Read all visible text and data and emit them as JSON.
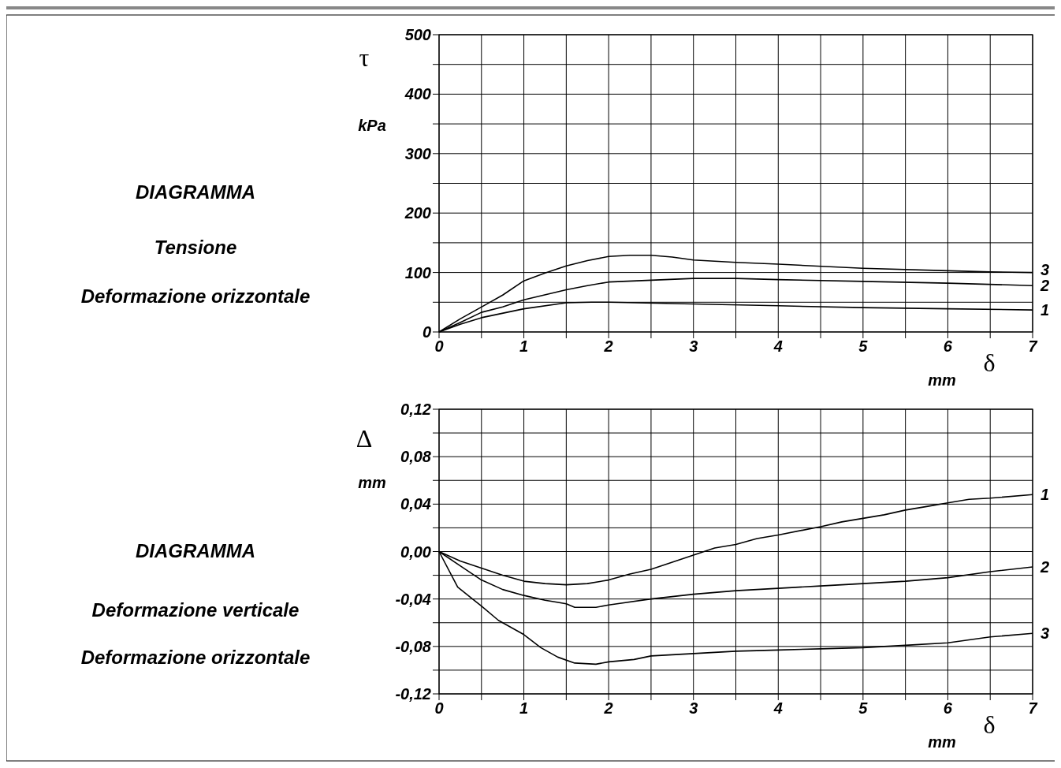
{
  "chart_data": [
    {
      "type": "line",
      "ylabel": "τ",
      "xlabel": "δ",
      "annotations": [
        "kPa",
        "mm",
        "DIAGRAMMA",
        "Tensione",
        "Deformazione orizzontale"
      ],
      "xlim": [
        0,
        7
      ],
      "ylim": [
        0,
        500
      ],
      "xticks": [
        0,
        {
          "value": 0.5,
          "label": null
        },
        1,
        {
          "value": 1.5,
          "label": null
        },
        2,
        {
          "value": 2.5,
          "label": null
        },
        3,
        {
          "value": 3.5,
          "label": null
        },
        4,
        {
          "value": 4.5,
          "label": null
        },
        5,
        {
          "value": 5.5,
          "label": null
        },
        6,
        {
          "value": 6.5,
          "label": null
        },
        7
      ],
      "yticks": [
        0,
        {
          "value": 50,
          "label": null
        },
        100,
        {
          "value": 150,
          "label": null
        },
        200,
        {
          "value": 250,
          "label": null
        },
        300,
        {
          "value": 350,
          "label": null
        },
        400,
        {
          "value": 450,
          "label": null
        },
        500
      ],
      "grid": true,
      "line_style": "solid",
      "series": [
        {
          "name": "1",
          "color": "#000000",
          "x": [
            0,
            0.25,
            0.5,
            1,
            1.5,
            1.8,
            2,
            3,
            4,
            5,
            6,
            7
          ],
          "values": [
            0,
            13,
            24,
            39,
            49,
            50,
            50,
            47,
            44,
            41,
            39,
            37
          ]
        },
        {
          "name": "2",
          "color": "#000000",
          "x": [
            0,
            0.25,
            0.5,
            0.75,
            1,
            1.5,
            1.75,
            2,
            2.5,
            3,
            3.5,
            4,
            5,
            6,
            7
          ],
          "values": [
            0,
            16,
            33,
            42,
            54,
            71,
            78,
            84,
            87,
            90,
            90,
            88,
            85,
            82,
            78
          ]
        },
        {
          "name": "3",
          "color": "#000000",
          "x": [
            0,
            0.25,
            0.5,
            0.75,
            1,
            1.25,
            1.5,
            1.75,
            2,
            2.25,
            2.5,
            2.75,
            3,
            3.5,
            4,
            5,
            6,
            6.5,
            7
          ],
          "values": [
            0,
            22,
            42,
            62,
            86,
            99,
            111,
            120,
            127,
            129,
            129,
            126,
            121,
            117,
            114,
            107,
            103,
            101,
            100
          ]
        }
      ]
    },
    {
      "type": "line",
      "ylabel": "Δ",
      "xlabel": "δ",
      "annotations": [
        "mm",
        "mm",
        "DIAGRAMMA",
        "Deformazione verticale",
        "Deformazione orizzontale"
      ],
      "xlim": [
        0,
        7
      ],
      "ylim": [
        -0.12,
        0.12
      ],
      "xticks": [
        0,
        {
          "value": 0.5,
          "label": null
        },
        1,
        {
          "value": 1.5,
          "label": null
        },
        2,
        {
          "value": 2.5,
          "label": null
        },
        3,
        {
          "value": 3.5,
          "label": null
        },
        4,
        {
          "value": 4.5,
          "label": null
        },
        5,
        {
          "value": 5.5,
          "label": null
        },
        6,
        {
          "value": 6.5,
          "label": null
        },
        7
      ],
      "yticks": [
        {
          "value": -0.12,
          "label": "-0,12"
        },
        {
          "value": -0.1,
          "label": null
        },
        {
          "value": -0.08,
          "label": "-0,08"
        },
        {
          "value": -0.06,
          "label": null
        },
        {
          "value": -0.04,
          "label": "-0,04"
        },
        {
          "value": -0.02,
          "label": null
        },
        {
          "value": 0,
          "label": "0,00"
        },
        {
          "value": 0.02,
          "label": null
        },
        {
          "value": 0.04,
          "label": "0,04"
        },
        {
          "value": 0.06,
          "label": null
        },
        {
          "value": 0.08,
          "label": "0,08"
        },
        {
          "value": 0.1,
          "label": null
        },
        {
          "value": 0.12,
          "label": "0,12"
        }
      ],
      "grid": true,
      "line_style": "solid",
      "series": [
        {
          "name": "1",
          "color": "#000000",
          "x": [
            0,
            0.25,
            0.5,
            0.75,
            1,
            1.25,
            1.5,
            1.75,
            2,
            2.25,
            2.5,
            2.75,
            3,
            3.25,
            3.5,
            3.75,
            4,
            4.5,
            4.75,
            5,
            5.25,
            5.5,
            5.75,
            6,
            6.25,
            6.5,
            7
          ],
          "values": [
            0,
            -0.008,
            -0.014,
            -0.02,
            -0.025,
            -0.027,
            -0.028,
            -0.027,
            -0.024,
            -0.019,
            -0.015,
            -0.009,
            -0.003,
            0.003,
            0.006,
            0.011,
            0.014,
            0.021,
            0.025,
            0.028,
            0.031,
            0.035,
            0.038,
            0.041,
            0.044,
            0.045,
            0.048
          ]
        },
        {
          "name": "2",
          "color": "#000000",
          "x": [
            0,
            0.25,
            0.5,
            0.75,
            1,
            1.25,
            1.5,
            1.6,
            1.85,
            2,
            2.5,
            3,
            3.5,
            4,
            4.5,
            5,
            5.5,
            6,
            6.5,
            7
          ],
          "values": [
            0,
            -0.012,
            -0.024,
            -0.032,
            -0.037,
            -0.041,
            -0.044,
            -0.047,
            -0.047,
            -0.045,
            -0.04,
            -0.036,
            -0.033,
            -0.031,
            -0.029,
            -0.027,
            -0.025,
            -0.022,
            -0.017,
            -0.013
          ]
        },
        {
          "name": "3",
          "color": "#000000",
          "x": [
            0,
            0.22,
            0.5,
            0.7,
            1,
            1.2,
            1.4,
            1.6,
            1.85,
            2,
            2.3,
            2.5,
            3,
            3.5,
            4,
            4.5,
            5,
            5.5,
            6,
            6.5,
            7
          ],
          "values": [
            0,
            -0.03,
            -0.046,
            -0.058,
            -0.07,
            -0.081,
            -0.089,
            -0.094,
            -0.095,
            -0.093,
            -0.091,
            -0.088,
            -0.086,
            -0.084,
            -0.083,
            -0.082,
            -0.081,
            -0.079,
            -0.077,
            -0.072,
            -0.069
          ]
        }
      ]
    }
  ]
}
